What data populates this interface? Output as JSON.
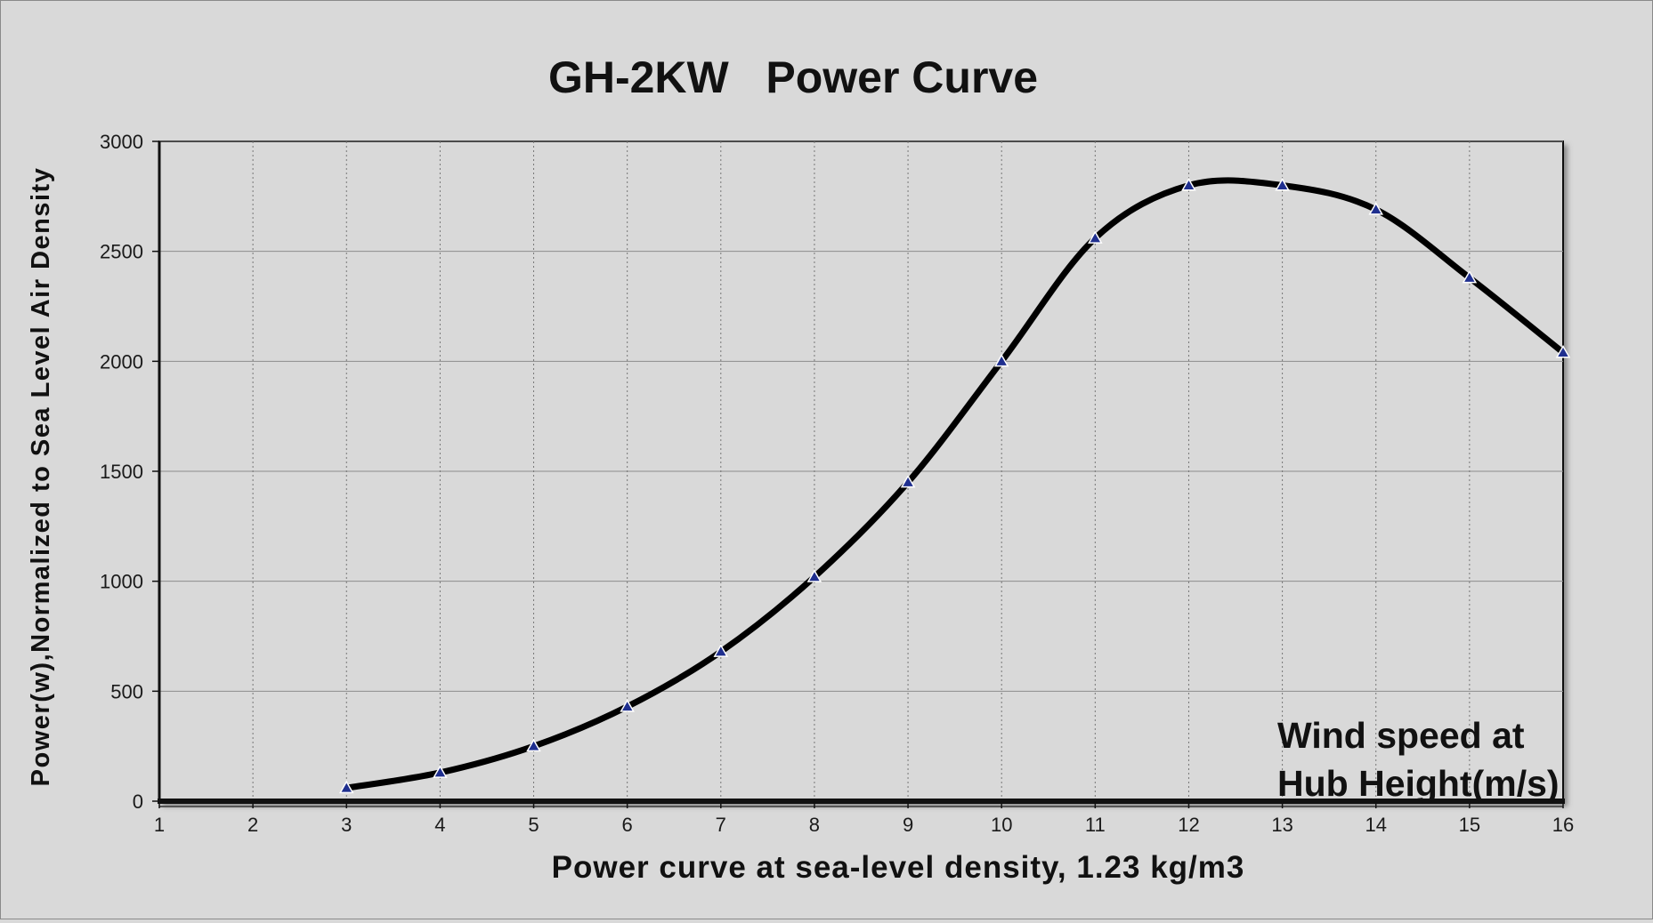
{
  "chart_data": {
    "type": "line",
    "title": "GH-2KW   Power Curve",
    "xlabel": "Power curve at sea-level density, 1.23 kg/m3",
    "ylabel": "Power(w),Normalized to Sea Level Air Density",
    "annotation": [
      "Wind speed at",
      "Hub Height(m/s)"
    ],
    "xlim": [
      1,
      16
    ],
    "ylim": [
      0,
      3000
    ],
    "x_ticks": [
      1,
      2,
      3,
      4,
      5,
      6,
      7,
      8,
      9,
      10,
      11,
      12,
      13,
      14,
      15,
      16
    ],
    "y_ticks": [
      0,
      500,
      1000,
      1500,
      2000,
      2500,
      3000
    ],
    "grid": true,
    "series": [
      {
        "x": [
          3,
          4,
          5,
          6,
          7,
          8,
          9,
          10,
          11,
          12,
          13,
          14,
          15,
          16
        ],
        "values": [
          60,
          130,
          250,
          430,
          680,
          1020,
          1450,
          2000,
          2560,
          2800,
          2800,
          2690,
          2380,
          2040
        ],
        "color": "#000000",
        "marker": "triangle",
        "marker_color": "#1f2f8f"
      }
    ]
  }
}
